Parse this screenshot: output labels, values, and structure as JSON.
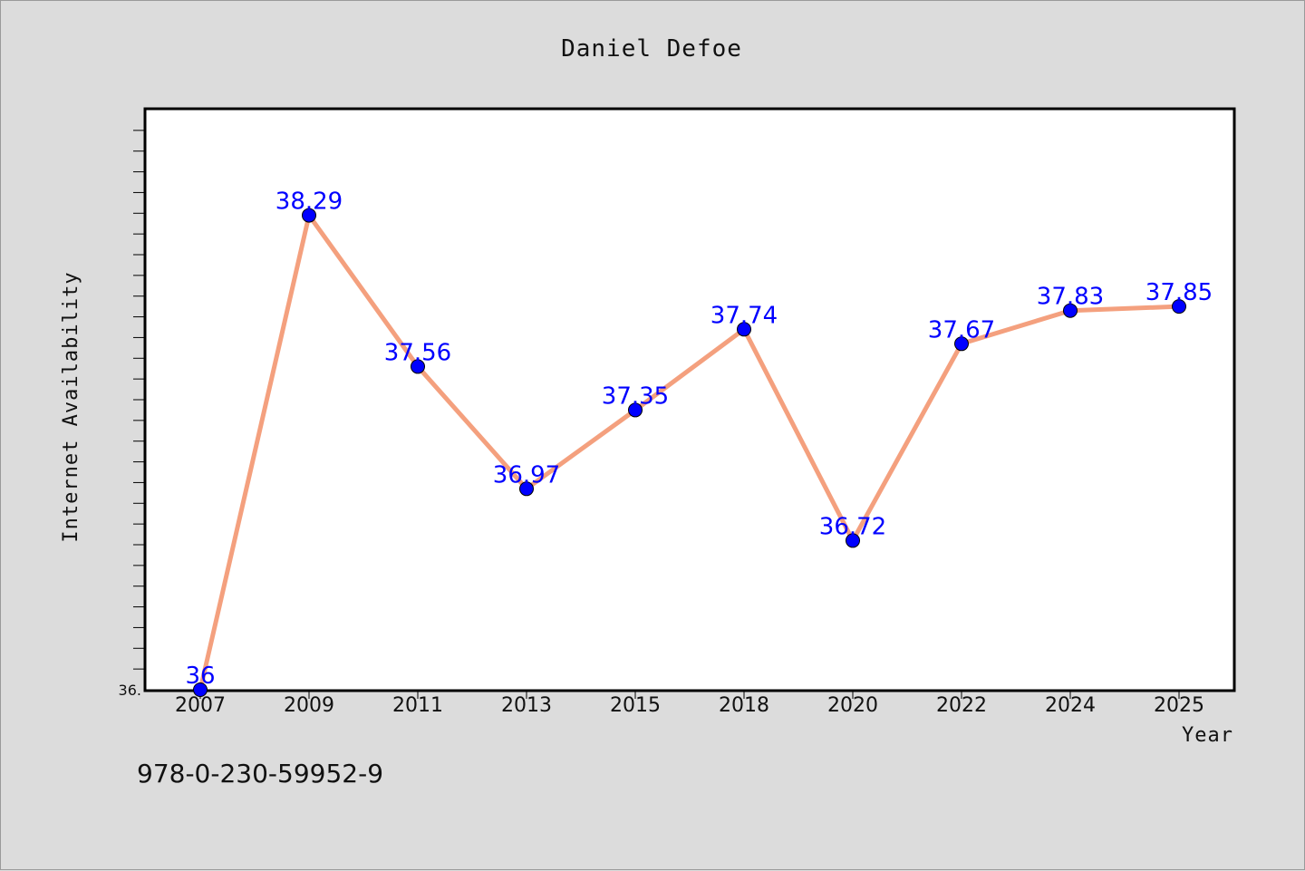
{
  "chart_data": {
    "type": "line",
    "title": "Daniel Defoe",
    "xlabel": "Year",
    "ylabel": "Internet Availability",
    "categories": [
      "2007",
      "2009",
      "2011",
      "2013",
      "2015",
      "2018",
      "2020",
      "2022",
      "2024",
      "2025"
    ],
    "series": [
      {
        "values": [
          36,
          38.29,
          37.56,
          36.97,
          37.35,
          37.74,
          36.72,
          37.67,
          37.83,
          37.85
        ],
        "labels": [
          "36",
          "38.29",
          "37.56",
          "36.97",
          "37.35",
          "37.74",
          "36.72",
          "37.67",
          "37.83",
          "37.85"
        ],
        "line_color": "#f4a07e",
        "marker_color": "#0000ff"
      }
    ],
    "y_tick_label": "36.",
    "ylim": [
      36,
      38.8
    ],
    "y_minor_tick_step": 0.1,
    "grid": false,
    "legend": "none",
    "plot_background": "#ffffff",
    "figure_background": "#dcdcdc"
  },
  "footer_text": "978-0-230-59952-9"
}
